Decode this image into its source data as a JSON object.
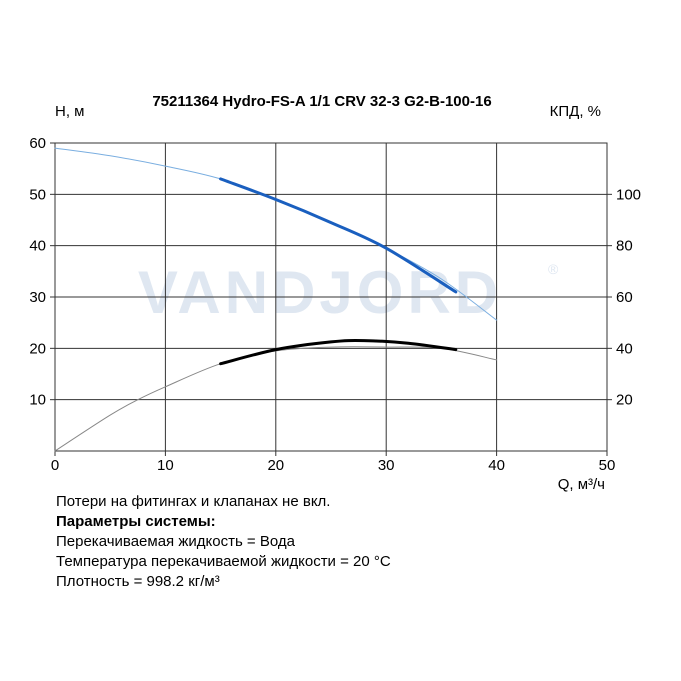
{
  "chart_data": {
    "type": "line",
    "title": "75211364 Hydro-FS-A 1/1 CRV 32-3 G2-B-100-16",
    "ylabel": "H, м",
    "y2label": "КПД, %",
    "xlabel": "Q, м³/ч",
    "xlim": [
      0,
      50
    ],
    "ylim": [
      0,
      60
    ],
    "y2lim": [
      0,
      120
    ],
    "x_ticks": [
      "0",
      "10",
      "20",
      "30",
      "40",
      "50"
    ],
    "y_ticks": [
      "10",
      "20",
      "30",
      "40",
      "50",
      "60"
    ],
    "y2_ticks": [
      "20",
      "40",
      "60",
      "80",
      "100"
    ],
    "grid": true,
    "series": [
      {
        "axis": "left",
        "color": "#7aaee0",
        "x": [
          0,
          5,
          10,
          15,
          20,
          25,
          30,
          35,
          40
        ],
        "y": [
          59,
          57.5,
          55.5,
          53,
          49,
          44.5,
          39.5,
          33.5,
          25.5
        ]
      },
      {
        "axis": "left",
        "color": "#1a5fbf",
        "bold_range": [
          15,
          36.3
        ],
        "x": [
          15,
          20,
          25,
          30,
          36.3
        ],
        "y": [
          53,
          49,
          44.5,
          39.5,
          31
        ]
      },
      {
        "axis": "right",
        "color": "#888888",
        "x": [
          0,
          5,
          7.5,
          10,
          15,
          20,
          25,
          30,
          35,
          40
        ],
        "y": [
          0,
          14,
          20,
          25,
          34,
          39,
          40.5,
          40.5,
          40,
          35.5
        ]
      },
      {
        "axis": "right",
        "color": "#000000",
        "bold_range": [
          15,
          36.3
        ],
        "x": [
          15,
          20,
          25,
          28,
          32,
          36.3
        ],
        "y": [
          34,
          39.5,
          42.5,
          43,
          42,
          39.5
        ]
      }
    ]
  },
  "watermark": {
    "text": "VANDJORD"
  },
  "notes": {
    "line1": "Потери на фитингах и клапанах не вкл.",
    "line2": "Параметры системы:",
    "line3": "Перекачиваемая жидкость = Вода",
    "line4": "Температура перекачиваемой жидкости = 20 °C",
    "line5": "Плотность = 998.2 кг/м³"
  },
  "colors": {
    "head_curve": "#1a5fbf",
    "head_curve_thin": "#7aaee0",
    "eff_curve": "#000000",
    "eff_curve_thin": "#888888",
    "grid": "#333333"
  }
}
